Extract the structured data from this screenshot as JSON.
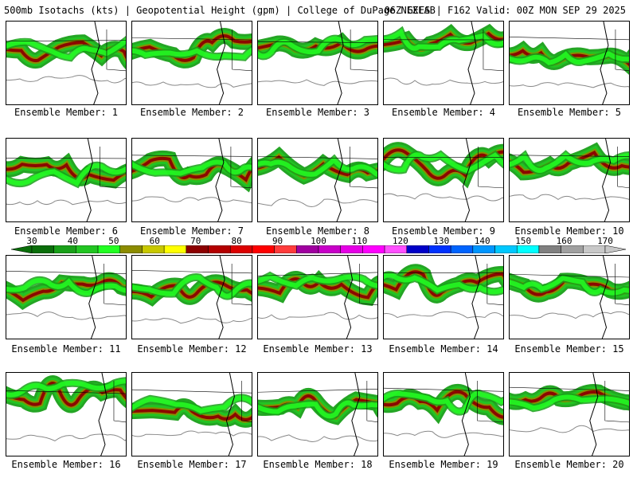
{
  "header": {
    "left_title": "500mb Isotachs (kts) | Geopotential Height (gpm) | College of DuPage NEXLAB",
    "right_title": "06Z GEFS | F162 Valid: 00Z MON SEP 29 2025"
  },
  "member_label_prefix": "Ensemble Member: ",
  "members": [
    "1",
    "2",
    "3",
    "4",
    "5",
    "6",
    "7",
    "8",
    "9",
    "10",
    "11",
    "12",
    "13",
    "14",
    "15",
    "16",
    "17",
    "18",
    "19",
    "20"
  ],
  "colorbar": {
    "ticks": [
      "30",
      "40",
      "50",
      "60",
      "70",
      "80",
      "90",
      "100",
      "110",
      "120",
      "130",
      "140",
      "150",
      "160",
      "170"
    ],
    "colors": [
      "#0a6e0a",
      "#19a019",
      "#22c522",
      "#22ff22",
      "#8c8c00",
      "#c8c800",
      "#ffff00",
      "#8c0000",
      "#b40000",
      "#dc0000",
      "#ff0000",
      "#ff3c3c",
      "#a000a0",
      "#c800c8",
      "#e600e6",
      "#ff00ff",
      "#ff50ff",
      "#0000c8",
      "#0032ff",
      "#0064ff",
      "#0096ff",
      "#00c8ff",
      "#00ffff",
      "#808080",
      "#a0a0a0",
      "#c8c8c8"
    ]
  }
}
